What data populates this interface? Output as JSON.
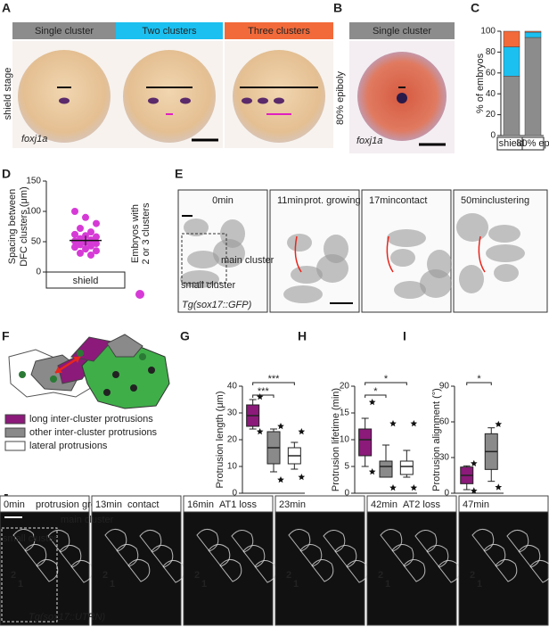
{
  "panel_labels": [
    "A",
    "B",
    "C",
    "D",
    "E",
    "F",
    "G",
    "H",
    "I",
    "J"
  ],
  "panel_a": {
    "headers": [
      {
        "label": "Single cluster",
        "color": "#8c8c8c"
      },
      {
        "label": "Two clusters",
        "color": "#1bc0f0"
      },
      {
        "label": "Three clusters",
        "color": "#f26a3a"
      }
    ],
    "side_label": "shield stage",
    "gene": "foxj1a"
  },
  "panel_b": {
    "header": {
      "label": "Single cluster",
      "color": "#8c8c8c"
    },
    "side_label": "80% epiboly",
    "gene": "foxj1a"
  },
  "panel_e": {
    "frames": [
      {
        "time": "0min"
      },
      {
        "time": "11min",
        "event": "prot. growing",
        "color": "#a0308f"
      },
      {
        "time": "17min",
        "event": "contact",
        "color": "#a0308f"
      },
      {
        "time": "50min",
        "event": "clustering",
        "color": "#e8261d"
      }
    ],
    "small_cluster": "small cluster",
    "main_cluster": "main cluster",
    "transgene": "Tg(sox17::GFP)"
  },
  "panel_f": {
    "legend": [
      {
        "label": "long inter-cluster protrusions",
        "color": "#8b1a7a"
      },
      {
        "label": "other inter-cluster protrusions",
        "color": "#8a8a8a"
      },
      {
        "label": "lateral protrusions",
        "color": "#ffffff"
      }
    ]
  },
  "panel_j": {
    "frames": [
      {
        "time": "0min",
        "event": "protrusion growing",
        "color": "#a0308f"
      },
      {
        "time": "13min",
        "event": "contact",
        "color": "#a0308f"
      },
      {
        "time": "16min",
        "event": "AT1 loss",
        "color": "#3cbf3c"
      },
      {
        "time": "23min"
      },
      {
        "time": "42min",
        "event": "AT2 loss",
        "color": "#f0a020"
      },
      {
        "time": "47min"
      }
    ],
    "small_cluster": "small cluster",
    "main_cluster": "main cluster",
    "transgene": "Tg(sox17::UTRN)",
    "cell_labels": [
      "1",
      "2"
    ]
  },
  "chart_data": [
    {
      "type": "stacked-bar",
      "ylabel": "% of embryos",
      "categories": [
        "shield",
        "80% ep"
      ],
      "series": [
        {
          "color": "#8c8c8c",
          "values": [
            57,
            94
          ]
        },
        {
          "color": "#1bc0f0",
          "values": [
            28,
            5
          ]
        },
        {
          "color": "#f26a3a",
          "values": [
            15,
            1
          ]
        }
      ],
      "ylim": [
        0,
        100
      ],
      "yticks": [
        0,
        20,
        40,
        60,
        80,
        100
      ]
    },
    {
      "type": "strip",
      "ylabel": [
        "Spacing between",
        "DFC clusters (μm)"
      ],
      "category": "shield",
      "color": "#d63ad6",
      "values": [
        100,
        90,
        80,
        72,
        66,
        62,
        60,
        58,
        55,
        53,
        51,
        49,
        47,
        45,
        43,
        41,
        38,
        35,
        31,
        28
      ],
      "mean": 52,
      "sem": 8,
      "legend": [
        "Embryos with",
        "2 or 3 clusters"
      ],
      "ylim": [
        0,
        150
      ],
      "yticks": [
        0,
        50,
        100,
        150
      ]
    },
    {
      "type": "box",
      "ylabel": "Protrusion length (μm)",
      "ylim": [
        0,
        40
      ],
      "yticks": [
        0,
        10,
        20,
        30,
        40
      ],
      "boxes": [
        {
          "color": "#8b1a7a",
          "min": 24,
          "q1": 25,
          "median": 29,
          "q3": 33,
          "max": 35,
          "outliers": [
            36,
            23
          ]
        },
        {
          "color": "#8a8a8a",
          "min": 8,
          "q1": 11,
          "median": 17,
          "q3": 23,
          "max": 24,
          "outliers": [
            25,
            5
          ]
        },
        {
          "color": "#ffffff",
          "min": 9,
          "q1": 11,
          "median": 14,
          "q3": 17,
          "max": 19,
          "outliers": [
            23,
            6
          ]
        }
      ],
      "brackets": [
        {
          "label": "***",
          "between": [
            0,
            1
          ]
        },
        {
          "label": "***",
          "between": [
            0,
            2
          ]
        }
      ]
    },
    {
      "type": "box",
      "ylabel": "Protrusion lifetime (min)",
      "ylim": [
        0,
        20
      ],
      "yticks": [
        0,
        5,
        10,
        15,
        20
      ],
      "boxes": [
        {
          "color": "#8b1a7a",
          "min": 5,
          "q1": 7,
          "median": 10,
          "q3": 12,
          "max": 14,
          "outliers": [
            17,
            4
          ]
        },
        {
          "color": "#8a8a8a",
          "min": 3,
          "q1": 3,
          "median": 5,
          "q3": 6,
          "max": 9,
          "outliers": [
            13,
            1
          ]
        },
        {
          "color": "#ffffff",
          "min": 3,
          "q1": 3.5,
          "median": 5,
          "q3": 6,
          "max": 8,
          "outliers": [
            13,
            1
          ]
        }
      ],
      "brackets": [
        {
          "label": "*",
          "between": [
            0,
            1
          ]
        },
        {
          "label": "*",
          "between": [
            0,
            2
          ]
        }
      ]
    },
    {
      "type": "box",
      "ylabel": "Protrusion alignment (°)",
      "ylabel_color": "#e8261d",
      "ylim": [
        0,
        90
      ],
      "yticks": [
        0,
        30,
        60,
        90
      ],
      "boxes": [
        {
          "color": "#8b1a7a",
          "min": 3,
          "q1": 8,
          "median": 15,
          "q3": 22,
          "max": 23,
          "outliers": [
            25,
            2
          ]
        },
        {
          "color": "#8a8a8a",
          "min": 10,
          "q1": 20,
          "median": 35,
          "q3": 50,
          "max": 55,
          "outliers": [
            58,
            5
          ]
        }
      ],
      "brackets": [
        {
          "label": "*",
          "between": [
            0,
            1
          ]
        }
      ]
    }
  ]
}
